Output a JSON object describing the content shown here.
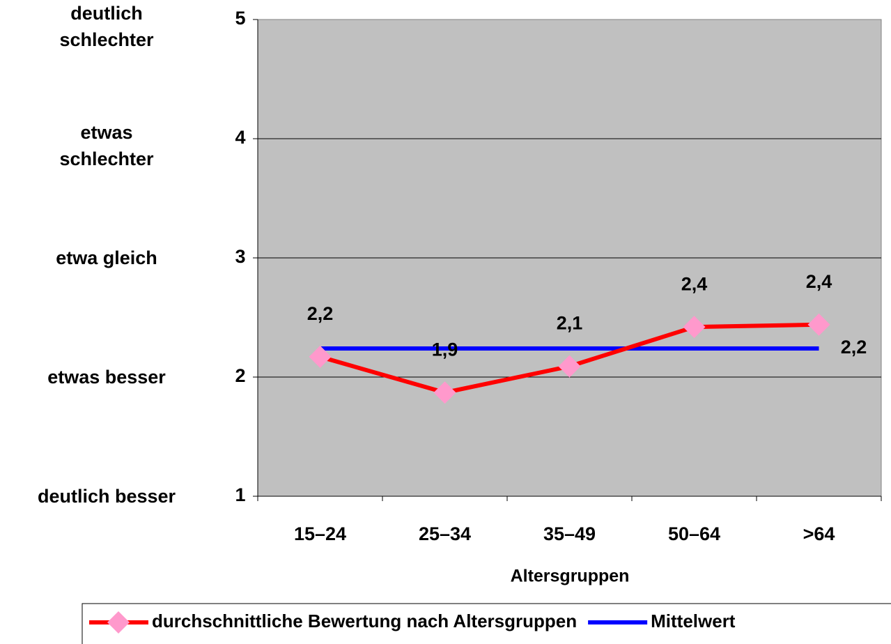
{
  "chart_data": {
    "type": "line",
    "categories": [
      "15–24",
      "25–34",
      "35–49",
      "50–64",
      ">64"
    ],
    "x_axis_label": "Altersgruppen",
    "ylim": [
      1,
      5
    ],
    "yticks": [
      1,
      2,
      3,
      4,
      5
    ],
    "y_rating_labels": [
      "deutlich besser",
      "etwas besser",
      "etwa gleich",
      "etwas schlechter",
      "deutlich schlechter"
    ],
    "grid": true,
    "series": [
      {
        "name": "durchschnittliche Bewertung nach Altersgruppen",
        "color": "#ff0000",
        "marker_color": "#ff99cc",
        "values": [
          2.17,
          1.87,
          2.09,
          2.42,
          2.44
        ],
        "value_labels": [
          "2,2",
          "1,9",
          "2,1",
          "2,4",
          "2,4"
        ]
      },
      {
        "name": "Mittelwert",
        "color": "#0000ff",
        "values": [
          2.24,
          2.24,
          2.24,
          2.24,
          2.24
        ],
        "value_labels": [
          null,
          null,
          null,
          null,
          "2,2"
        ]
      }
    ],
    "legend": "bottom"
  }
}
